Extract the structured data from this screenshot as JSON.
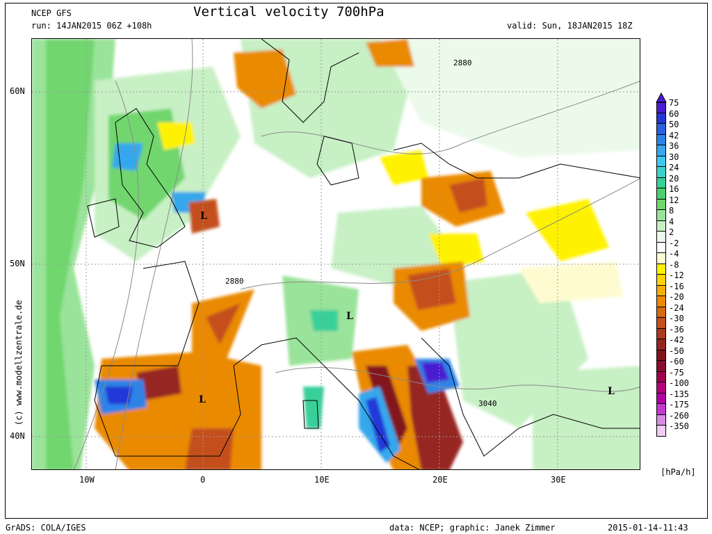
{
  "header": {
    "model": "NCEP GFS",
    "run": "run: 14JAN2015 06Z +108h",
    "title": "Vertical velocity 700hPa",
    "valid": "valid: Sun, 18JAN2015 18Z"
  },
  "axes": {
    "lat_labels": [
      "60N",
      "50N",
      "40N"
    ],
    "lon_labels": [
      "10W",
      "0",
      "10E",
      "20E",
      "30E"
    ]
  },
  "map_labels": {
    "contours": [
      "2880",
      "2880",
      "3040"
    ],
    "lows": [
      "L",
      "L",
      "L",
      "L"
    ]
  },
  "colorbar": {
    "unit": "[hPa/h]",
    "levels": [
      "75",
      "60",
      "50",
      "42",
      "36",
      "30",
      "24",
      "20",
      "16",
      "12",
      "8",
      "4",
      "2",
      "-2",
      "-4",
      "-8",
      "-12",
      "-16",
      "-20",
      "-24",
      "-30",
      "-36",
      "-42",
      "-50",
      "-60",
      "-75",
      "-100",
      "-135",
      "-175",
      "-260",
      "-350"
    ],
    "colors": [
      "#4a1bd1",
      "#2438d8",
      "#2a61e0",
      "#2e83e6",
      "#36a7ec",
      "#3ec8ef",
      "#38d3c8",
      "#37cf9a",
      "#4bd06f",
      "#71d66e",
      "#9ae39a",
      "#c7f0c4",
      "#ebfaea",
      "#ffffff",
      "#fffbd0",
      "#fff200",
      "#ffd400",
      "#f6ae00",
      "#ea8a00",
      "#d86a10",
      "#c4501a",
      "#ad3a1f",
      "#962520",
      "#82141d",
      "#8c0a2e",
      "#a4004e",
      "#b5007b",
      "#b300a8",
      "#c43ad0",
      "#d98ce4",
      "#f2cdf2"
    ]
  },
  "footer": {
    "left": "GrADS: COLA/IGES",
    "center": "data: NCEP; graphic: Janek Zimmer",
    "right": "2015-01-14-11:43",
    "watermark": "(c)  www.modellzentrale.de"
  }
}
